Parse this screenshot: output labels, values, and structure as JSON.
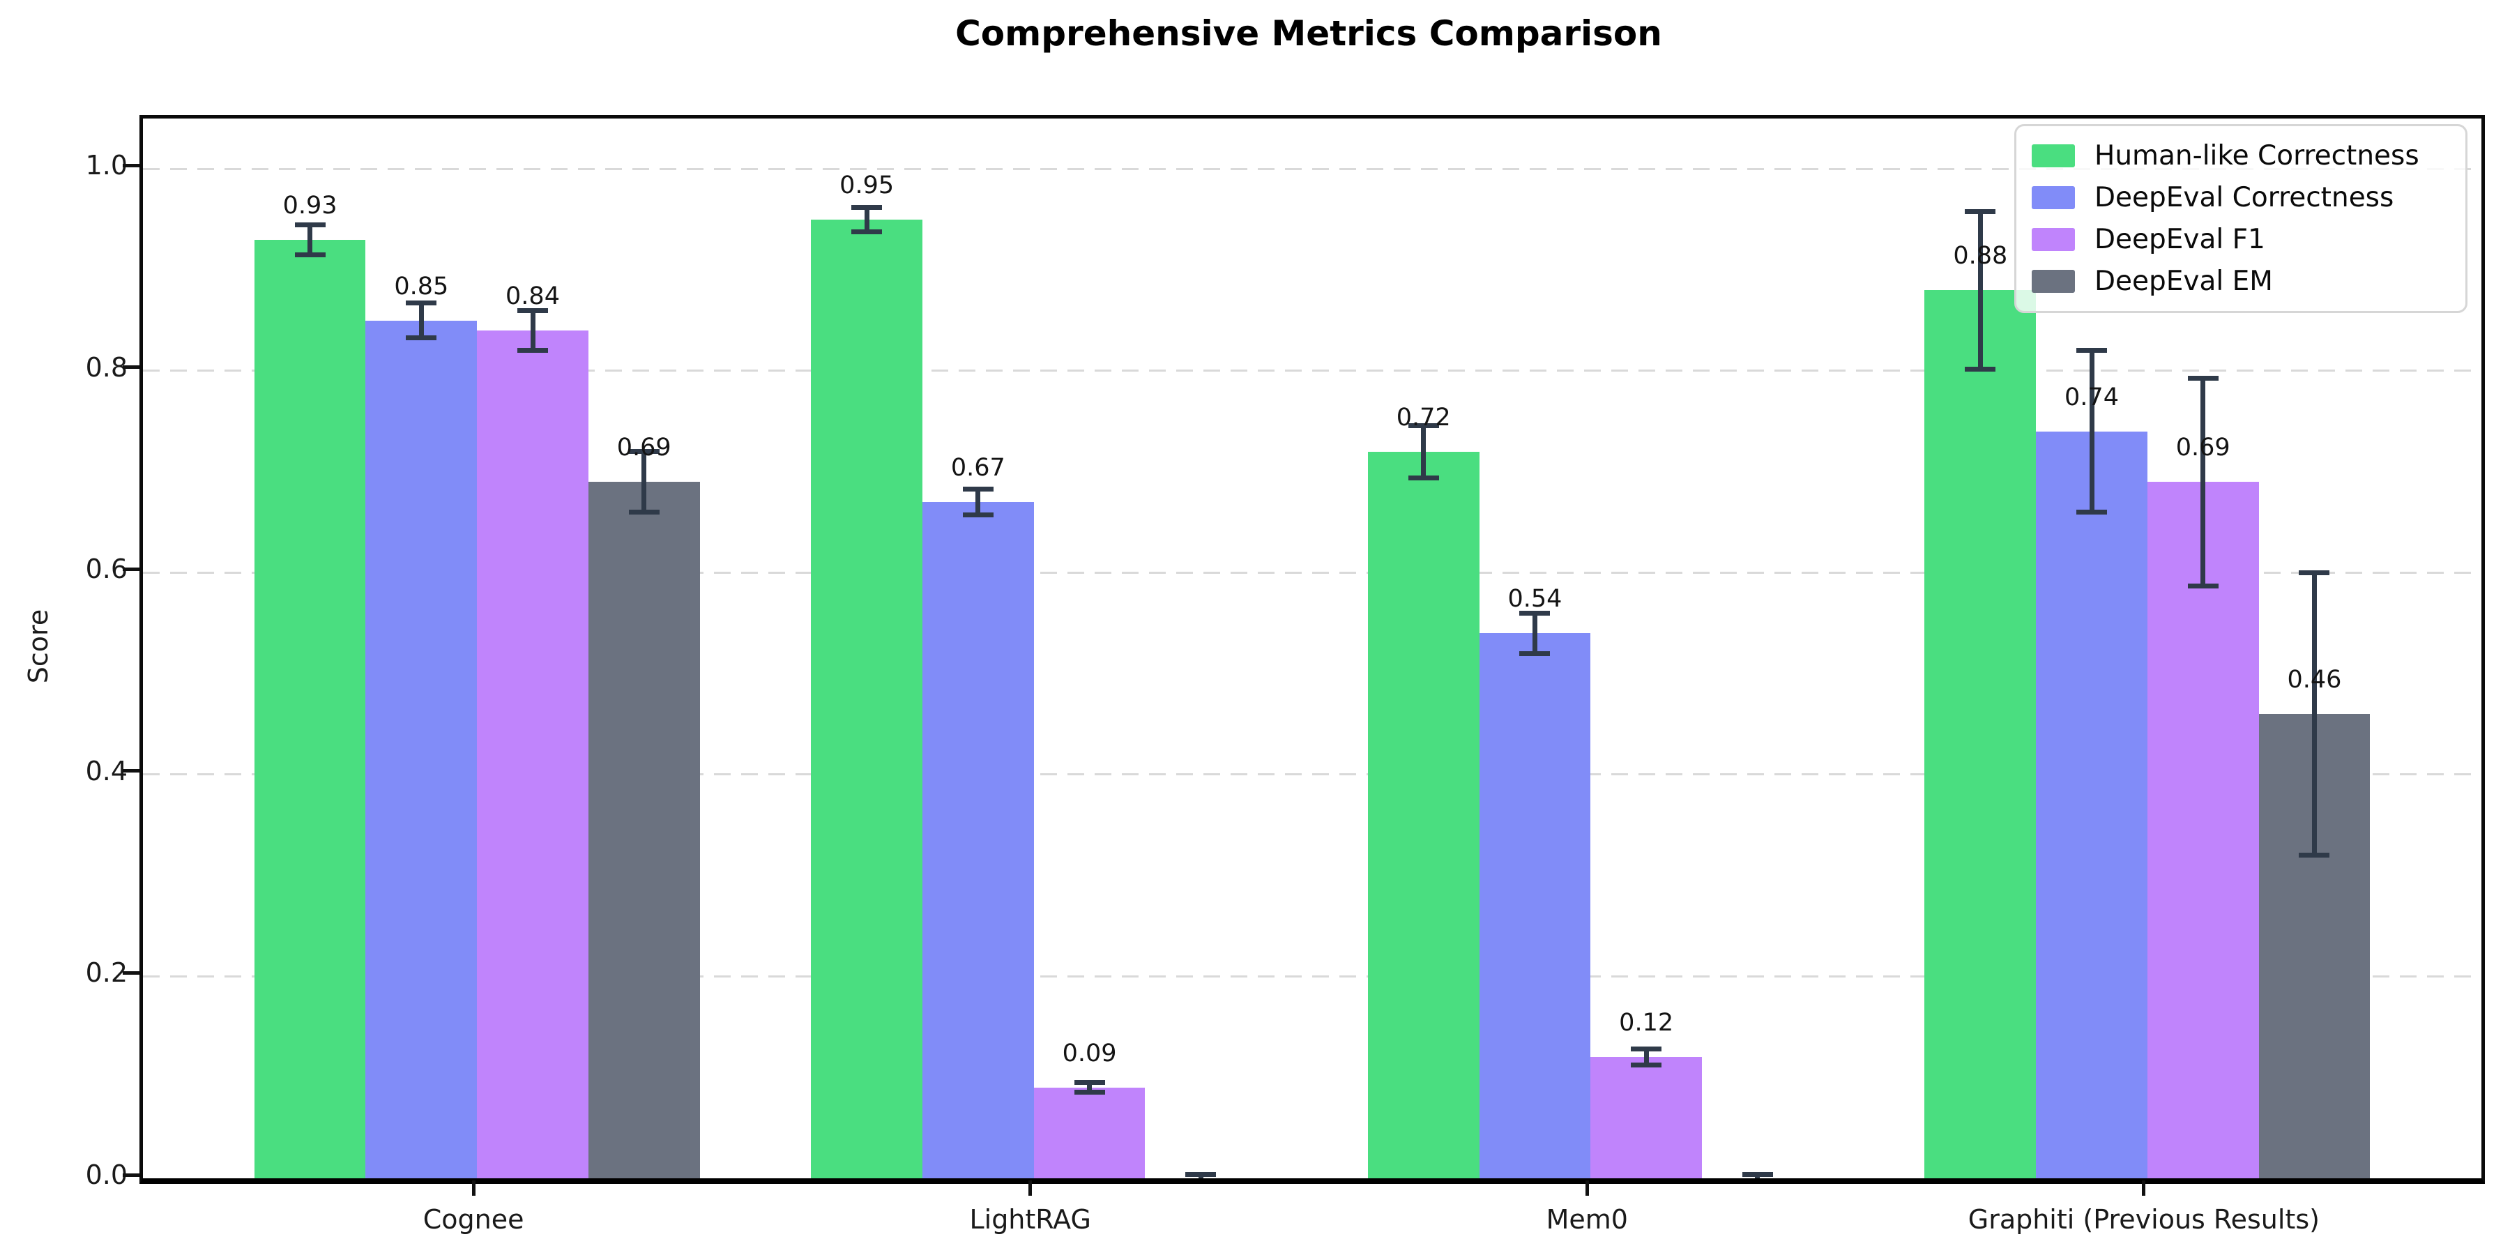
{
  "chart_data": {
    "type": "bar",
    "title": "Comprehensive Metrics Comparison",
    "xlabel": "",
    "ylabel": "Score",
    "categories": [
      "Cognee",
      "LightRAG",
      "Mem0",
      "Graphiti (Previous Results)"
    ],
    "series": [
      {
        "name": "Human-like Correctness",
        "color": "#4ade80",
        "values": [
          0.93,
          0.95,
          0.72,
          0.88
        ],
        "errors": [
          0.015,
          0.012,
          0.026,
          0.078
        ],
        "labels": [
          "0.93",
          "0.95",
          "0.72",
          "0.88"
        ]
      },
      {
        "name": "DeepEval Correctness",
        "color": "#818cf8",
        "values": [
          0.85,
          0.67,
          0.54,
          0.74
        ],
        "errors": [
          0.017,
          0.013,
          0.02,
          0.08
        ],
        "labels": [
          "0.85",
          "0.67",
          "0.54",
          "0.74"
        ]
      },
      {
        "name": "DeepEval F1",
        "color": "#c084fc",
        "values": [
          0.84,
          0.09,
          0.12,
          0.69
        ],
        "errors": [
          0.02,
          0.005,
          0.008,
          0.103
        ],
        "labels": [
          "0.84",
          "0.09",
          "0.12",
          "0.69"
        ]
      },
      {
        "name": "DeepEval EM",
        "color": "#6b7280",
        "values": [
          0.69,
          0.0,
          0.0,
          0.46
        ],
        "errors": [
          0.03,
          0.004,
          0.004,
          0.14
        ],
        "labels": [
          "0.69",
          null,
          null,
          "0.46"
        ]
      }
    ],
    "ylim": [
      0,
      1.05
    ],
    "yticks": [
      "0.0",
      "0.2",
      "0.4",
      "0.6",
      "0.8",
      "1.0"
    ],
    "ytick_values": [
      0.0,
      0.2,
      0.4,
      0.6,
      0.8,
      1.0
    ],
    "grid": "horizontal-dashed",
    "legend_position": "upper right",
    "bar_width_data_units": 0.2,
    "error_bar_color": "#2f3a49"
  }
}
